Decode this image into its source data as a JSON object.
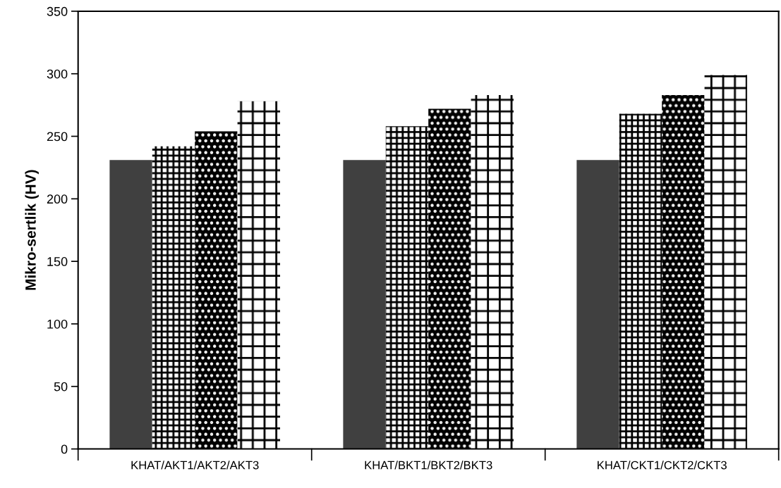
{
  "chart_data": {
    "type": "bar",
    "ylabel": "Mikro-sertlik (HV)",
    "categories": [
      "KHAT/AKT1/AKT2/AKT3",
      "KHAT/BKT1/BKT2/BKT3",
      "KHAT/CKT1/CKT2/CKT3"
    ],
    "series": [
      {
        "color": "#404040",
        "values": [
          231,
          231,
          231
        ]
      },
      {
        "color": "#000000",
        "values": [
          242,
          258,
          268
        ]
      },
      {
        "color": "#000000",
        "values": [
          254,
          272,
          283
        ]
      },
      {
        "color": "#000000",
        "values": [
          278,
          283,
          299
        ]
      }
    ],
    "ylim": [
      0,
      350
    ],
    "yticks": [
      0,
      50,
      100,
      150,
      200,
      250,
      300,
      350
    ],
    "grid": false,
    "legend": false
  }
}
